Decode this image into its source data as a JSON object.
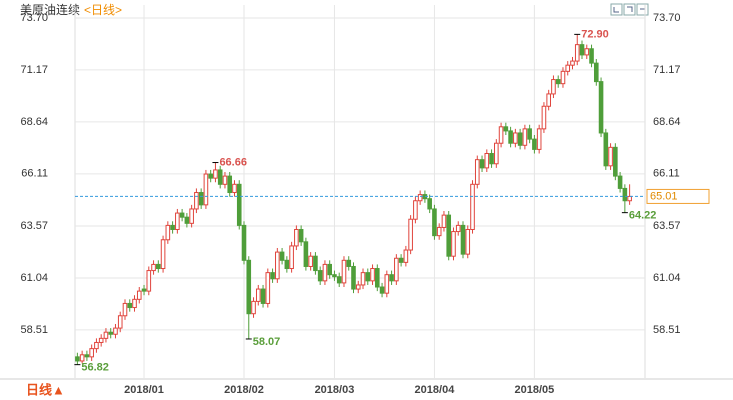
{
  "header": {
    "title": "美原油连续",
    "period": "<日线>",
    "period_button": "日线▲"
  },
  "chart_data": {
    "type": "candlestick",
    "categories": [
      null,
      null,
      null,
      null,
      null,
      null,
      null,
      null,
      null,
      null,
      null,
      null,
      null,
      null,
      "2018/01",
      null,
      null,
      null,
      null,
      null,
      null,
      null,
      null,
      null,
      null,
      null,
      null,
      null,
      null,
      null,
      null,
      null,
      null,
      null,
      null,
      "2018/02",
      null,
      null,
      null,
      null,
      null,
      null,
      null,
      null,
      null,
      null,
      null,
      null,
      null,
      null,
      null,
      null,
      null,
      null,
      "2018/03",
      null,
      null,
      null,
      null,
      null,
      null,
      null,
      null,
      null,
      null,
      null,
      null,
      null,
      null,
      null,
      null,
      null,
      null,
      null,
      null,
      "2018/04",
      null,
      null,
      null,
      null,
      null,
      null,
      null,
      null,
      null,
      null,
      null,
      null,
      null,
      null,
      null,
      null,
      null,
      null,
      null,
      null,
      "2018/05",
      null,
      null,
      null,
      null,
      null,
      null,
      null,
      null,
      null,
      null,
      null,
      null,
      null,
      null,
      null,
      null,
      null,
      null,
      null,
      null
    ],
    "open": [
      57.2,
      57.0,
      57.3,
      57.2,
      57.6,
      57.9,
      58.1,
      58.4,
      58.3,
      58.6,
      59.2,
      59.8,
      59.6,
      60.0,
      60.5,
      60.4,
      61.4,
      61.7,
      61.5,
      62.9,
      63.6,
      63.4,
      64.2,
      64.0,
      63.7,
      64.4,
      65.2,
      64.6,
      66.1,
      65.9,
      66.3,
      65.6,
      66.0,
      65.2,
      65.6,
      63.6,
      61.9,
      59.3,
      59.9,
      60.5,
      59.8,
      61.3,
      61.0,
      62.3,
      61.9,
      61.5,
      62.6,
      63.4,
      62.8,
      61.6,
      62.1,
      61.4,
      60.9,
      61.7,
      61.2,
      61.1,
      60.8,
      61.9,
      61.6,
      60.5,
      60.7,
      61.3,
      60.9,
      61.5,
      60.6,
      60.3,
      61.2,
      60.9,
      62.0,
      61.8,
      62.4,
      63.9,
      64.8,
      65.1,
      64.9,
      64.4,
      63.1,
      63.5,
      64.1,
      62.1,
      63.3,
      63.6,
      62.2,
      63.4,
      65.6,
      66.8,
      66.4,
      67.1,
      66.6,
      67.6,
      68.4,
      68.2,
      67.6,
      68.1,
      67.5,
      68.3,
      67.8,
      67.3,
      68.3,
      69.4,
      70.0,
      70.7,
      70.5,
      71.1,
      71.4,
      71.6,
      72.4,
      71.9,
      72.2,
      71.5,
      70.6,
      68.1,
      66.5,
      67.4,
      66.0,
      65.4,
      64.8
    ],
    "high": [
      57.4,
      57.5,
      57.5,
      57.8,
      58.1,
      58.3,
      58.6,
      58.6,
      58.8,
      59.4,
      60.0,
      60.0,
      60.2,
      60.6,
      60.7,
      61.6,
      61.9,
      61.9,
      63.1,
      63.8,
      63.8,
      64.4,
      64.4,
      64.2,
      64.6,
      65.4,
      65.4,
      66.3,
      66.3,
      66.66,
      66.5,
      66.2,
      66.2,
      65.8,
      65.8,
      63.8,
      62.1,
      60.1,
      60.7,
      60.7,
      61.5,
      61.5,
      62.5,
      62.5,
      62.1,
      62.8,
      63.6,
      63.6,
      63.0,
      62.3,
      62.3,
      61.6,
      61.9,
      61.9,
      61.4,
      61.3,
      62.1,
      62.1,
      61.8,
      60.9,
      61.5,
      61.5,
      61.7,
      61.7,
      60.8,
      61.4,
      61.4,
      62.2,
      62.2,
      62.6,
      64.1,
      65.0,
      65.3,
      65.3,
      65.1,
      64.6,
      63.7,
      64.3,
      64.3,
      63.5,
      63.8,
      63.8,
      63.6,
      65.8,
      67.0,
      67.0,
      67.3,
      67.3,
      67.8,
      68.6,
      68.6,
      68.4,
      68.3,
      68.3,
      68.5,
      68.5,
      68.0,
      68.5,
      69.6,
      70.2,
      70.9,
      70.9,
      71.3,
      71.6,
      71.8,
      72.9,
      72.6,
      72.4,
      72.4,
      71.7,
      70.8,
      68.3,
      67.6,
      67.6,
      66.2,
      65.6,
      65.6
    ],
    "low": [
      56.82,
      56.88,
      57.0,
      57.0,
      57.4,
      57.7,
      57.9,
      58.1,
      58.1,
      58.4,
      59.0,
      59.4,
      59.4,
      59.8,
      60.2,
      60.2,
      61.2,
      61.3,
      61.3,
      62.7,
      63.2,
      63.2,
      63.8,
      63.5,
      63.5,
      64.2,
      64.4,
      64.4,
      65.7,
      65.7,
      65.4,
      65.4,
      65.0,
      65.0,
      63.4,
      61.7,
      58.07,
      59.1,
      59.7,
      59.6,
      59.6,
      60.8,
      60.8,
      61.7,
      61.3,
      61.3,
      62.4,
      62.6,
      61.4,
      61.4,
      61.2,
      60.7,
      60.7,
      61.0,
      60.9,
      60.6,
      60.6,
      61.4,
      60.3,
      60.3,
      60.5,
      60.7,
      60.7,
      60.4,
      60.1,
      60.1,
      60.7,
      60.7,
      61.6,
      61.6,
      62.2,
      63.7,
      64.6,
      64.7,
      64.2,
      62.9,
      62.9,
      63.3,
      61.9,
      61.9,
      63.1,
      62.0,
      62.0,
      63.2,
      65.4,
      66.2,
      66.2,
      66.4,
      66.4,
      67.4,
      68.0,
      67.4,
      67.4,
      67.3,
      67.3,
      67.6,
      67.1,
      67.1,
      68.1,
      69.2,
      69.8,
      70.3,
      70.3,
      70.9,
      71.2,
      71.4,
      71.7,
      71.7,
      71.3,
      70.4,
      67.9,
      66.3,
      66.3,
      65.8,
      65.2,
      64.22,
      64.6
    ],
    "close": [
      57.0,
      57.3,
      57.2,
      57.6,
      57.9,
      58.1,
      58.4,
      58.3,
      58.6,
      59.2,
      59.8,
      59.6,
      60.0,
      60.4,
      60.4,
      61.4,
      61.7,
      61.5,
      62.9,
      63.6,
      63.4,
      64.2,
      64.0,
      63.7,
      64.4,
      65.2,
      64.6,
      66.1,
      65.9,
      66.3,
      65.6,
      66.0,
      65.2,
      65.6,
      63.6,
      61.9,
      59.3,
      59.9,
      60.5,
      59.8,
      61.3,
      61.0,
      62.3,
      61.9,
      61.5,
      62.6,
      63.4,
      62.8,
      61.6,
      62.1,
      61.4,
      60.9,
      61.7,
      61.2,
      61.1,
      60.8,
      61.9,
      61.6,
      60.5,
      60.7,
      61.3,
      60.9,
      61.5,
      60.6,
      60.3,
      61.2,
      60.9,
      62.0,
      61.8,
      62.4,
      63.9,
      64.8,
      65.1,
      64.9,
      64.4,
      63.1,
      63.5,
      64.1,
      62.1,
      63.3,
      63.6,
      62.2,
      63.4,
      65.6,
      66.8,
      66.4,
      67.1,
      66.6,
      67.6,
      68.4,
      68.2,
      67.6,
      68.1,
      67.5,
      68.3,
      67.8,
      67.3,
      68.3,
      69.4,
      70.0,
      70.7,
      70.5,
      71.1,
      71.4,
      71.6,
      72.4,
      71.9,
      72.2,
      71.5,
      70.6,
      68.1,
      66.5,
      67.4,
      66.0,
      65.4,
      64.8,
      65.01
    ],
    "up_color": "#e0443c",
    "down_color": "#4f9e3a",
    "ylim": [
      56.17,
      74.33
    ],
    "yticks": [
      {
        "value": 73.7,
        "label": "73.70"
      },
      71.17,
      68.64,
      66.11,
      63.57,
      61.04,
      58.51
    ],
    "grid": true,
    "last_price": 65.01,
    "annotations": [
      {
        "value": 72.9,
        "label": "72.90",
        "color": "#d9534f"
      },
      {
        "value": 66.66,
        "label": "66.66",
        "color": "#d9534f"
      },
      {
        "value": 58.07,
        "label": "58.07",
        "color": "#5a9e3a"
      },
      {
        "value": 56.82,
        "label": "56.82",
        "color": "#5a9e3a"
      },
      {
        "value": 64.22,
        "label": "64.22",
        "color": "#5a9e3a"
      }
    ]
  }
}
